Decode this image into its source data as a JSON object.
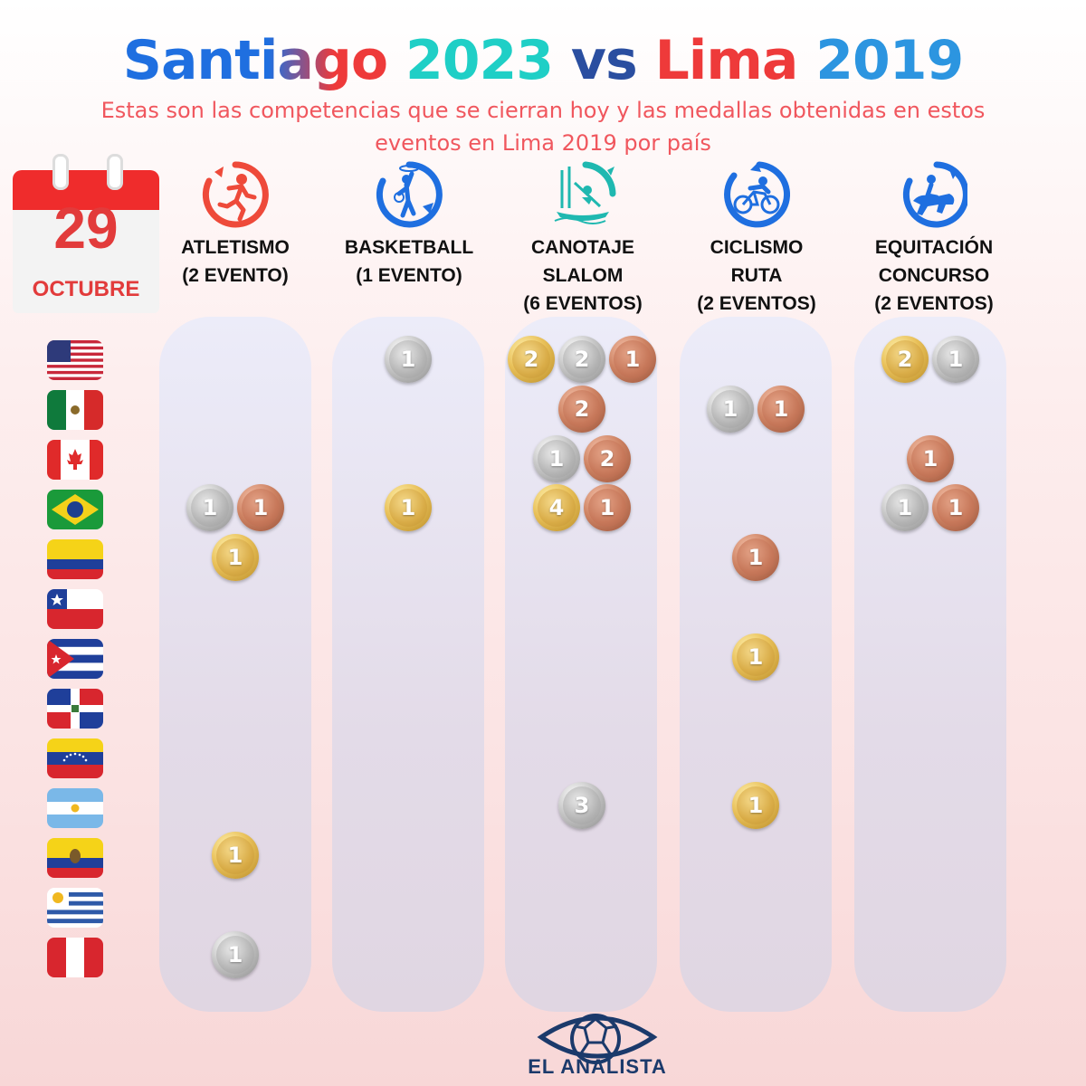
{
  "title": {
    "part1": "Santiago",
    "part2": "2023",
    "part3": "vs",
    "part4": "Lima",
    "part5": "2019"
  },
  "subtitle": "Estas son las competencias que se cierran hoy y las medallas obtenidas en estos eventos en Lima 2019 por país",
  "calendar": {
    "day": "29",
    "month": "OCTUBRE"
  },
  "sports": [
    {
      "name": "ATLETISMO\n(2 EVENTO)",
      "icon": "athletics-runner-icon"
    },
    {
      "name": "BASKETBALL\n(1 EVENTO)",
      "icon": "basketball-player-icon"
    },
    {
      "name": "CANOTAJE\nSLALOM\n(6 EVENTOS)",
      "icon": "canoe-slalom-icon"
    },
    {
      "name": "CICLISMO\nRUTA\n(2 EVENTOS)",
      "icon": "cycling-icon"
    },
    {
      "name": "EQUITACIÓN\nCONCURSO\n(2 EVENTOS)",
      "icon": "equestrian-icon"
    }
  ],
  "countries": [
    "usa-flag",
    "mexico-flag",
    "canada-flag",
    "brazil-flag",
    "colombia-flag",
    "chile-flag",
    "cuba-flag",
    "dominican-republic-flag",
    "venezuela-flag",
    "argentina-flag",
    "ecuador-flag",
    "uruguay-flag",
    "peru-flag"
  ],
  "medals": {
    "atletismo": [
      {
        "country": 3,
        "type": "silver",
        "count": "1"
      },
      {
        "country": 3,
        "type": "bronze",
        "count": "1"
      },
      {
        "country": 4,
        "type": "gold",
        "count": "1"
      },
      {
        "country": 10,
        "type": "gold",
        "count": "1"
      },
      {
        "country": 12,
        "type": "silver",
        "count": "1"
      }
    ],
    "basketball": [
      {
        "country": 0,
        "type": "silver",
        "count": "1"
      },
      {
        "country": 3,
        "type": "gold",
        "count": "1"
      }
    ],
    "canotaje": [
      {
        "country": 0,
        "type": "gold",
        "count": "2"
      },
      {
        "country": 0,
        "type": "silver",
        "count": "2"
      },
      {
        "country": 0,
        "type": "bronze",
        "count": "1"
      },
      {
        "country": 1,
        "type": "bronze",
        "count": "2"
      },
      {
        "country": 2,
        "type": "silver",
        "count": "1"
      },
      {
        "country": 2,
        "type": "bronze",
        "count": "2"
      },
      {
        "country": 3,
        "type": "gold",
        "count": "4"
      },
      {
        "country": 3,
        "type": "bronze",
        "count": "1"
      },
      {
        "country": 9,
        "type": "silver",
        "count": "3"
      }
    ],
    "ciclismo": [
      {
        "country": 1,
        "type": "silver",
        "count": "1"
      },
      {
        "country": 1,
        "type": "bronze",
        "count": "1"
      },
      {
        "country": 4,
        "type": "bronze",
        "count": "1"
      },
      {
        "country": 6,
        "type": "gold",
        "count": "1"
      },
      {
        "country": 9,
        "type": "gold",
        "count": "1"
      }
    ],
    "equitacion": [
      {
        "country": 0,
        "type": "gold",
        "count": "2"
      },
      {
        "country": 0,
        "type": "silver",
        "count": "1"
      },
      {
        "country": 2,
        "type": "bronze",
        "count": "1"
      },
      {
        "country": 3,
        "type": "silver",
        "count": "1"
      },
      {
        "country": 3,
        "type": "bronze",
        "count": "1"
      }
    ]
  },
  "logo": {
    "text": "EL ANALISTA",
    "icon": "eye-ball-logo-icon"
  },
  "colors": {
    "blue": "#1f6fe0",
    "teal": "#1fcfc6",
    "red": "#ee3a3a",
    "subtitle": "#f0575e",
    "calendar_red": "#e23b3b"
  }
}
